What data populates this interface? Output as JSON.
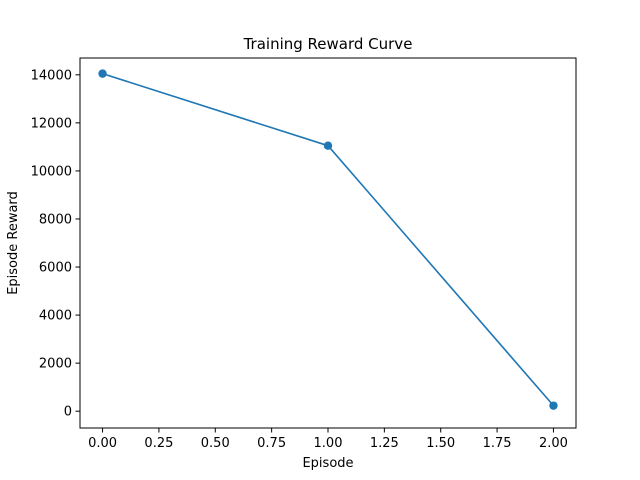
{
  "chart_data": {
    "type": "line",
    "title": "Training Reward Curve",
    "xlabel": "Episode",
    "ylabel": "Episode Reward",
    "xlim": [
      -0.1,
      2.1
    ],
    "ylim": [
      -700,
      14700
    ],
    "xticks": [
      0.0,
      0.25,
      0.5,
      0.75,
      1.0,
      1.25,
      1.5,
      1.75,
      2.0
    ],
    "xtick_labels": [
      "0.00",
      "0.25",
      "0.50",
      "0.75",
      "1.00",
      "1.25",
      "1.50",
      "1.75",
      "2.00"
    ],
    "yticks": [
      0,
      2000,
      4000,
      6000,
      8000,
      10000,
      12000,
      14000
    ],
    "ytick_labels": [
      "0",
      "2000",
      "4000",
      "6000",
      "8000",
      "10000",
      "12000",
      "14000"
    ],
    "grid": false,
    "series": [
      {
        "x": [
          0,
          1,
          2
        ],
        "values": [
          14050,
          11050,
          230
        ],
        "color": "#1f77b4",
        "marker": "circle"
      }
    ]
  }
}
